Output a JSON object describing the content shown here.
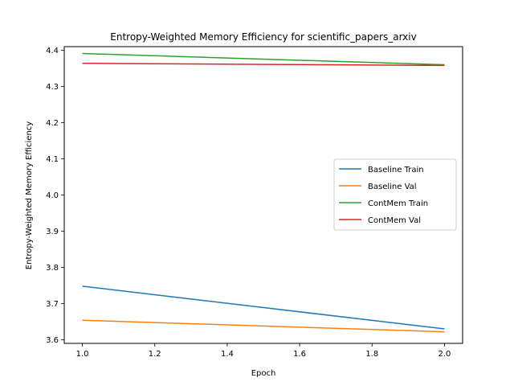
{
  "chart_data": {
    "type": "line",
    "title": "Entropy-Weighted Memory Efficiency for scientific_papers_arxiv",
    "xlabel": "Epoch",
    "ylabel": "Entropy-Weighted Memory Efficiency",
    "xlim": [
      0.95,
      2.05
    ],
    "ylim": [
      3.59,
      4.41
    ],
    "xticks": [
      1.0,
      1.2,
      1.4,
      1.6,
      1.8,
      2.0
    ],
    "xtick_labels": [
      "1.0",
      "1.2",
      "1.4",
      "1.6",
      "1.8",
      "2.0"
    ],
    "yticks": [
      3.6,
      3.7,
      3.8,
      3.9,
      4.0,
      4.1,
      4.2,
      4.3,
      4.4
    ],
    "ytick_labels": [
      "3.6",
      "3.7",
      "3.8",
      "3.9",
      "4.0",
      "4.1",
      "4.2",
      "4.3",
      "4.4"
    ],
    "grid": false,
    "legend_position": "center-right",
    "series": [
      {
        "name": "Baseline Train",
        "color": "#1f77b4",
        "x": [
          1,
          2
        ],
        "values": [
          3.748,
          3.63
        ]
      },
      {
        "name": "Baseline Val",
        "color": "#ff7f0e",
        "x": [
          1,
          2
        ],
        "values": [
          3.654,
          3.622
        ]
      },
      {
        "name": "ContMem Train",
        "color": "#2ca02c",
        "x": [
          1,
          2
        ],
        "values": [
          4.391,
          4.36
        ]
      },
      {
        "name": "ContMem Val",
        "color": "#d62728",
        "x": [
          1,
          2
        ],
        "values": [
          4.364,
          4.358
        ]
      }
    ]
  }
}
